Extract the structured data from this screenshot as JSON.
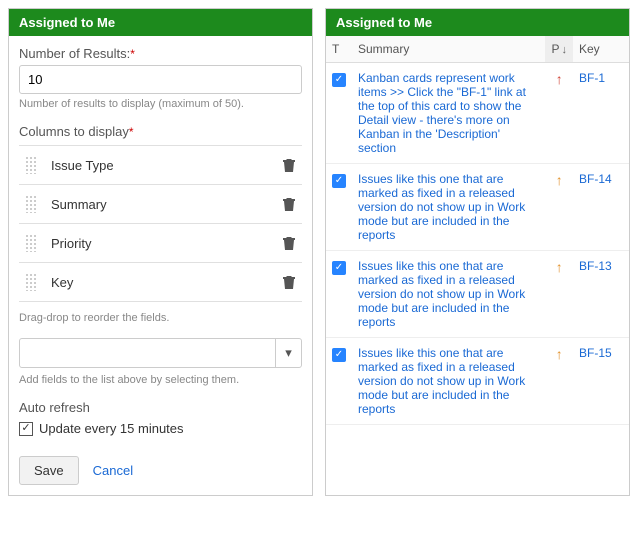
{
  "left": {
    "title": "Assigned to Me",
    "numResultsLabel": "Number of Results:",
    "numResultsValue": "10",
    "numResultsHint": "Number of results to display (maximum of 50).",
    "columnsLabel": "Columns to display",
    "columns": [
      {
        "name": "Issue Type"
      },
      {
        "name": "Summary"
      },
      {
        "name": "Priority"
      },
      {
        "name": "Key"
      }
    ],
    "reorderHint": "Drag-drop to reorder the fields.",
    "addFieldsHint": "Add fields to the list above by selecting them.",
    "autoRefreshTitle": "Auto refresh",
    "autoRefreshLabel": "Update every 15 minutes",
    "autoRefreshChecked": true,
    "saveLabel": "Save",
    "cancelLabel": "Cancel"
  },
  "right": {
    "title": "Assigned to Me",
    "headers": {
      "type": "T",
      "summary": "Summary",
      "priority": "P",
      "sortIndicator": "↓",
      "key": "Key"
    },
    "rows": [
      {
        "summary": "Kanban cards represent work items >> Click the \"BF-1\" link at the top of this card to show the Detail view - there's more on Kanban in the 'Description' section",
        "priority": "↑",
        "priorityColor": "#d04437",
        "key": "BF-1"
      },
      {
        "summary": "Issues like this one that are marked as fixed in a released version do not show up in Work mode but are included in the reports",
        "priority": "↑",
        "priorityColor": "#e2932f",
        "key": "BF-14"
      },
      {
        "summary": "Issues like this one that are marked as fixed in a released version do not show up in Work mode but are included in the reports",
        "priority": "↑",
        "priorityColor": "#e2932f",
        "key": "BF-13"
      },
      {
        "summary": "Issues like this one that are marked as fixed in a released version do not show up in Work mode but are included in the reports",
        "priority": "↑",
        "priorityColor": "#e2932f",
        "key": "BF-15"
      }
    ]
  },
  "colors": {
    "headerGreen": "#1d8a1d",
    "link": "#1a69d4",
    "checkBlue": "#2684ff"
  }
}
